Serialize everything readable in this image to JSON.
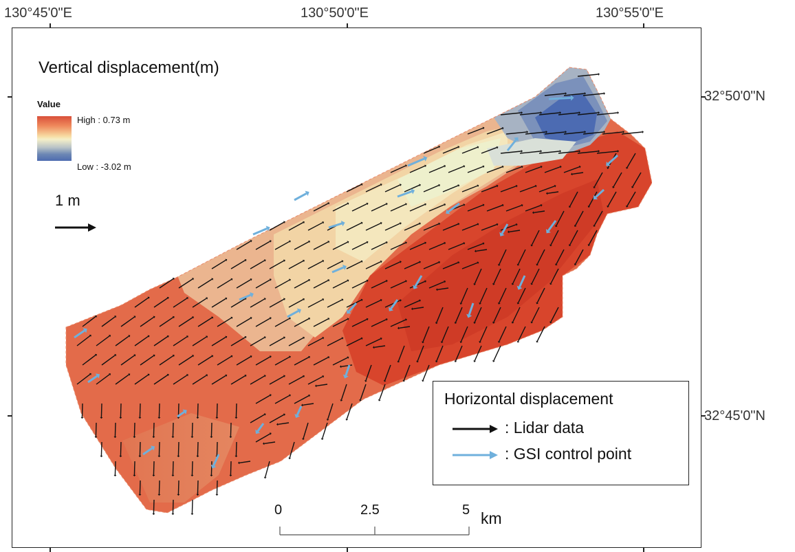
{
  "coordinates": {
    "lon_labels": [
      "130°45'0\"E",
      "130°50'0\"E",
      "130°55'0\"E"
    ],
    "lat_labels": [
      "32°50'0\"N",
      "32°45'0\"N"
    ]
  },
  "map": {
    "title": "Vertical displacement(m)",
    "legend": {
      "heading": "Value",
      "high_label": "High : 0.73 m",
      "low_label": "Low : -3.02 m",
      "high_value_m": 0.73,
      "low_value_m": -3.02,
      "ramp_colors": [
        "#d9503a",
        "#f5efc8",
        "#4d6bb0"
      ]
    },
    "arrow_scale_label": "1 m",
    "horizontal_legend": {
      "title": "Horizontal displacement",
      "lidar_label": ": Lidar data",
      "gsi_label": ": GSI control point",
      "lidar_color": "#111111",
      "gsi_color": "#6fb0dc"
    },
    "scalebar": {
      "ticks": [
        "0",
        "2.5",
        "5"
      ],
      "unit": "km"
    }
  }
}
